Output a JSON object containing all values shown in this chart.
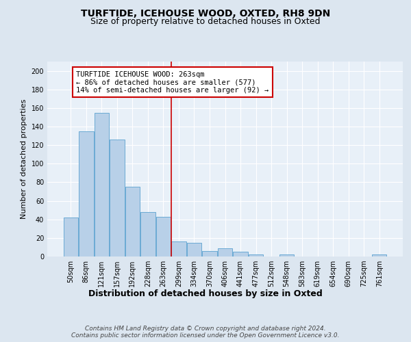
{
  "title1": "TURFTIDE, ICEHOUSE WOOD, OXTED, RH8 9DN",
  "title2": "Size of property relative to detached houses in Oxted",
  "xlabel": "Distribution of detached houses by size in Oxted",
  "ylabel": "Number of detached properties",
  "footnote": "Contains HM Land Registry data © Crown copyright and database right 2024.\nContains public sector information licensed under the Open Government Licence v3.0.",
  "bar_labels": [
    "50sqm",
    "86sqm",
    "121sqm",
    "157sqm",
    "192sqm",
    "228sqm",
    "263sqm",
    "299sqm",
    "334sqm",
    "370sqm",
    "406sqm",
    "441sqm",
    "477sqm",
    "512sqm",
    "548sqm",
    "583sqm",
    "619sqm",
    "654sqm",
    "690sqm",
    "725sqm",
    "761sqm"
  ],
  "bar_values": [
    42,
    135,
    155,
    126,
    75,
    48,
    43,
    16,
    15,
    6,
    9,
    5,
    2,
    0,
    2,
    0,
    0,
    0,
    0,
    0,
    2
  ],
  "bar_color": "#b8d0e8",
  "bar_edge_color": "#6aaad4",
  "red_line_index": 6,
  "red_line_color": "#cc0000",
  "annotation_text": "TURFTIDE ICEHOUSE WOOD: 263sqm\n← 86% of detached houses are smaller (577)\n14% of semi-detached houses are larger (92) →",
  "annotation_box_color": "#ffffff",
  "annotation_box_edge": "#cc0000",
  "ylim": [
    0,
    210
  ],
  "yticks": [
    0,
    20,
    40,
    60,
    80,
    100,
    120,
    140,
    160,
    180,
    200
  ],
  "bg_color": "#dce6f0",
  "plot_bg_color": "#e8f0f8",
  "grid_color": "#ffffff",
  "title1_fontsize": 10,
  "title2_fontsize": 9,
  "xlabel_fontsize": 9,
  "ylabel_fontsize": 8,
  "footnote_fontsize": 6.5,
  "tick_fontsize": 7
}
